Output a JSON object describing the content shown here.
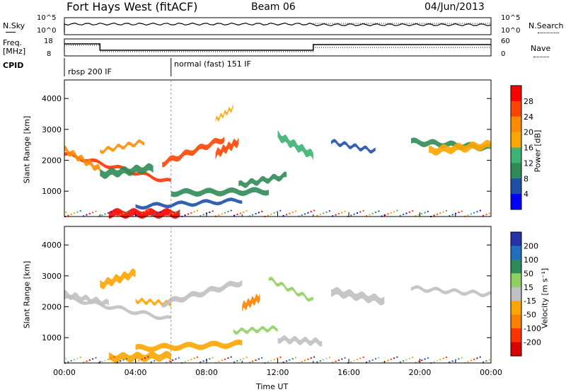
{
  "header": {
    "title": "Fort Hays West (fitACF)",
    "beam": "Beam 06",
    "date": "04/Jun/2013"
  },
  "panels": {
    "nsky": {
      "label": "N.Sky",
      "ticks_left": [
        "10^5",
        "10^0"
      ],
      "ticks_right": [
        "10^5",
        "10^0"
      ],
      "right_label": "N.Search"
    },
    "freq": {
      "label": "Freq.",
      "unit": "[MHz]",
      "ticks_left": [
        "18",
        "8"
      ],
      "ticks_right": [
        "60",
        "0"
      ],
      "right_label": "Nave"
    },
    "cpid": {
      "label": "CPID",
      "segments": [
        {
          "text": "rbsp 200 IF",
          "start_hour": 0
        },
        {
          "text": "normal (fast) 151 IF",
          "start_hour": 6
        }
      ]
    }
  },
  "chart_data": [
    {
      "type": "heatmap",
      "name": "power",
      "ylabel": "Slant Range [km]",
      "xlabel": "",
      "yticks": [
        1000,
        2000,
        3000,
        4000
      ],
      "ylim": [
        180,
        4600
      ],
      "xlim": [
        0,
        24
      ],
      "colorbar": {
        "label": "Power [dB]",
        "ticks": [
          "28",
          "24",
          "20",
          "16",
          "12",
          "8",
          "4"
        ],
        "colors": [
          "#ff0000",
          "#ff4500",
          "#ff8c00",
          "#ffa500",
          "#3cb371",
          "#2e8b57",
          "#1e4fa8",
          "#0000ff"
        ]
      },
      "bands": [
        {
          "t0": 0.0,
          "t1": 6.0,
          "r_start": 2200,
          "r_end": 1300,
          "color": "#ff3300"
        },
        {
          "t0": 0.0,
          "t1": 2.0,
          "r_start": 2350,
          "r_end": 1700,
          "color": "#ff8c00"
        },
        {
          "t0": 2.0,
          "t1": 5.0,
          "r_start": 1550,
          "r_end": 1750,
          "color": "#2e8b57"
        },
        {
          "t0": 2.0,
          "t1": 4.5,
          "r_start": 2300,
          "r_end": 2600,
          "color": "#ff8c00"
        },
        {
          "t0": 5.5,
          "t1": 9.0,
          "r_start": 1900,
          "r_end": 2700,
          "color": "#ff4500"
        },
        {
          "t0": 8.5,
          "t1": 9.8,
          "r_start": 2200,
          "r_end": 2600,
          "color": "#ff4500"
        },
        {
          "t0": 8.5,
          "t1": 9.5,
          "r_start": 3300,
          "r_end": 3700,
          "color": "#ffa500"
        },
        {
          "t0": 9.8,
          "t1": 12.5,
          "r_start": 1200,
          "r_end": 1500,
          "color": "#2e8b57"
        },
        {
          "t0": 12.0,
          "t1": 14.0,
          "r_start": 2800,
          "r_end": 2150,
          "color": "#3cb371"
        },
        {
          "t0": 4.0,
          "t1": 10.0,
          "r_start": 500,
          "r_end": 700,
          "color": "#1e4fa8"
        },
        {
          "t0": 6.0,
          "t1": 11.5,
          "r_start": 950,
          "r_end": 1000,
          "color": "#2e8b57"
        },
        {
          "t0": 2.5,
          "t1": 6.5,
          "r_start": 280,
          "r_end": 280,
          "color": "#ff0000"
        },
        {
          "t0": 15.0,
          "t1": 17.5,
          "r_start": 2600,
          "r_end": 2300,
          "color": "#1e4fa8"
        },
        {
          "t0": 19.5,
          "t1": 24.0,
          "r_start": 2600,
          "r_end": 2400,
          "color": "#2e8b57"
        },
        {
          "t0": 20.5,
          "t1": 24.0,
          "r_start": 2300,
          "r_end": 2500,
          "color": "#ffa500"
        }
      ]
    },
    {
      "type": "heatmap",
      "name": "velocity",
      "ylabel": "Slant Range [km]",
      "xlabel": "Time UT",
      "yticks": [
        1000,
        2000,
        3000,
        4000
      ],
      "ylim": [
        180,
        4600
      ],
      "xlim": [
        0,
        24
      ],
      "xticks": [
        "00:00",
        "04:00",
        "08:00",
        "12:00",
        "16:00",
        "20:00",
        "00:00"
      ],
      "colorbar": {
        "label": "Velocity [m s⁻¹]",
        "ticks": [
          "200",
          "100",
          "50",
          "15",
          "-15",
          "-50",
          "-100",
          "-200"
        ],
        "colors": [
          "#2233aa",
          "#1e6fbf",
          "#2e8b57",
          "#90d060",
          "#c0c0c0",
          "#ffa500",
          "#ff7f00",
          "#ff3300",
          "#dd0000"
        ]
      },
      "bands": [
        {
          "t0": 0.0,
          "t1": 6.0,
          "r_start": 2300,
          "r_end": 1600,
          "color": "#c0c0c0"
        },
        {
          "t0": 0.0,
          "t1": 2.5,
          "r_start": 2400,
          "r_end": 2100,
          "color": "#c0c0c0"
        },
        {
          "t0": 2.0,
          "t1": 4.0,
          "r_start": 2700,
          "r_end": 3100,
          "color": "#ffa500"
        },
        {
          "t0": 4.0,
          "t1": 6.0,
          "r_start": 2200,
          "r_end": 2100,
          "color": "#ffa500"
        },
        {
          "t0": 5.5,
          "t1": 10.0,
          "r_start": 2100,
          "r_end": 2800,
          "color": "#c0c0c0"
        },
        {
          "t0": 10.0,
          "t1": 11.0,
          "r_start": 2000,
          "r_end": 2300,
          "color": "#ff7f00"
        },
        {
          "t0": 11.5,
          "t1": 14.0,
          "r_start": 2900,
          "r_end": 2200,
          "color": "#90d060"
        },
        {
          "t0": 4.0,
          "t1": 10.0,
          "r_start": 650,
          "r_end": 800,
          "color": "#ffa500"
        },
        {
          "t0": 2.5,
          "t1": 6.0,
          "r_start": 350,
          "r_end": 400,
          "color": "#ffa500"
        },
        {
          "t0": 9.5,
          "t1": 12.0,
          "r_start": 1200,
          "r_end": 1300,
          "color": "#90d060"
        },
        {
          "t0": 12.0,
          "t1": 14.5,
          "r_start": 950,
          "r_end": 850,
          "color": "#c0c0c0"
        },
        {
          "t0": 15.0,
          "t1": 18.0,
          "r_start": 2500,
          "r_end": 2200,
          "color": "#c0c0c0"
        },
        {
          "t0": 19.5,
          "t1": 24.0,
          "r_start": 2600,
          "r_end": 2400,
          "color": "#c0c0c0"
        }
      ]
    }
  ]
}
